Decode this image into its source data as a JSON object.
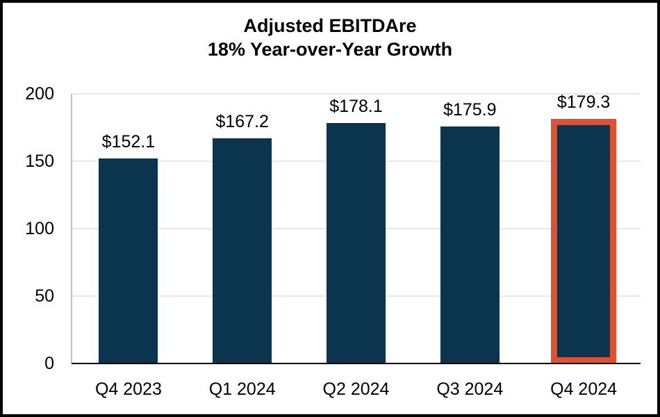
{
  "chart_data": {
    "type": "bar",
    "title": "Adjusted EBITDAre",
    "subtitle": "18% Year-over-Year Growth",
    "categories": [
      "Q4 2023",
      "Q1 2024",
      "Q2 2024",
      "Q3 2024",
      "Q4 2024"
    ],
    "values": [
      152.1,
      167.2,
      178.1,
      175.9,
      179.3
    ],
    "data_labels": [
      "$152.1",
      "$167.2",
      "$178.1",
      "$175.9",
      "$179.3"
    ],
    "y_ticks": [
      0,
      50,
      100,
      150,
      200
    ],
    "ylim": [
      0,
      200
    ],
    "grid": true,
    "legend_position": "none",
    "highlight_index": 4,
    "colors": {
      "bar": "#0B344E",
      "highlight_outline": "#E2502E",
      "gridline": "#E8E8E8",
      "axis_left": "#BFBFBF",
      "axis_bottom": "#000000",
      "frame_border": "#000000",
      "text": "#000000"
    }
  }
}
